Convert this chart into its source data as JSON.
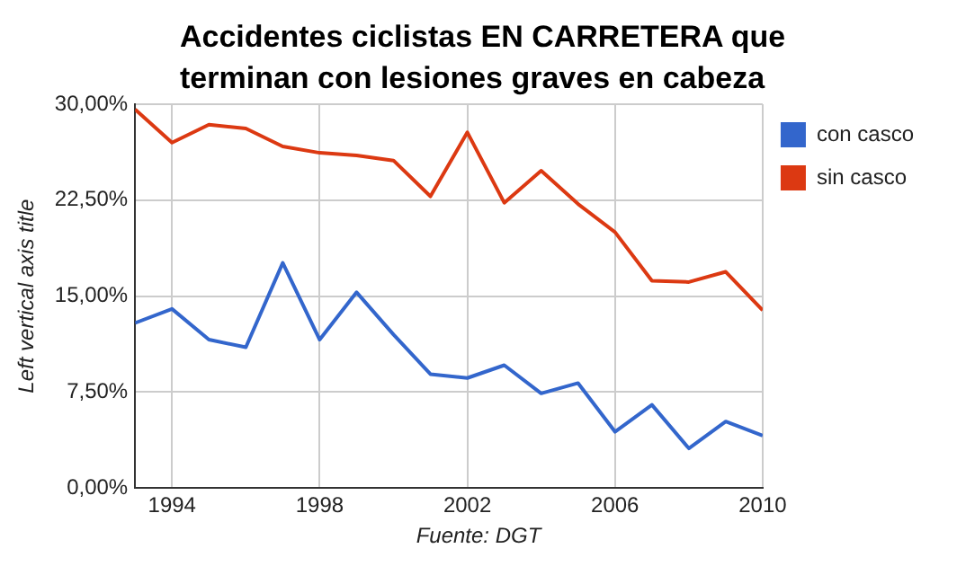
{
  "chart_data": {
    "type": "line",
    "title": "Accidentes ciclistas EN CARRETERA que terminan con lesiones graves en cabeza",
    "ylabel": "Left vertical axis title",
    "annotations": [
      "Fuente: DGT"
    ],
    "x": [
      1993,
      1994,
      1995,
      1996,
      1997,
      1998,
      1999,
      2000,
      2001,
      2002,
      2003,
      2004,
      2005,
      2006,
      2007,
      2008,
      2009,
      2010
    ],
    "series": [
      {
        "name": "con casco",
        "color": "#3366cc",
        "values": [
          12.9,
          14.0,
          11.6,
          11.0,
          17.6,
          11.6,
          15.3,
          12.0,
          8.9,
          8.6,
          9.6,
          7.4,
          8.2,
          4.4,
          6.5,
          3.1,
          5.2,
          4.1
        ]
      },
      {
        "name": "sin casco",
        "color": "#dc3912",
        "values": [
          29.6,
          27.0,
          28.4,
          28.1,
          26.7,
          26.2,
          26.0,
          25.6,
          22.8,
          27.8,
          22.3,
          24.8,
          22.2,
          20.0,
          16.2,
          16.1,
          16.9,
          13.9
        ]
      }
    ],
    "xlim": [
      1993,
      2010
    ],
    "xticks": [
      1994,
      1998,
      2002,
      2006,
      2010
    ],
    "ylim": [
      0,
      30
    ],
    "yticks": [
      {
        "value": 0,
        "label": "0,00%"
      },
      {
        "value": 7.5,
        "label": "7,50%"
      },
      {
        "value": 15,
        "label": "15,00%"
      },
      {
        "value": 22.5,
        "label": "22,50%"
      },
      {
        "value": 30,
        "label": "30,00%"
      }
    ],
    "grid": true,
    "legend": "right",
    "marker": "none",
    "line_style": "solid"
  }
}
